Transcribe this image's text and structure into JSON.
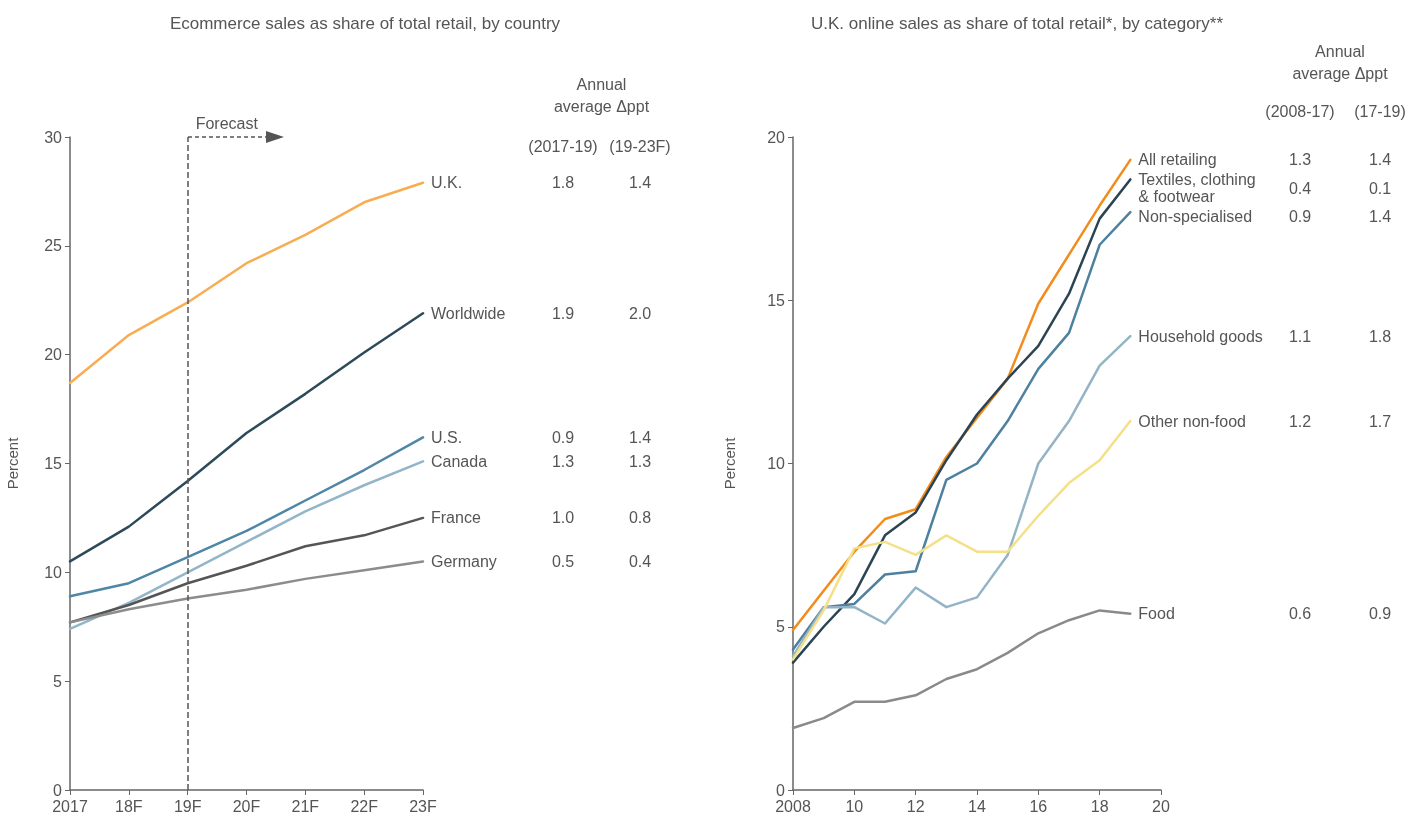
{
  "chart_data": [
    {
      "type": "line",
      "title": "Ecommerce sales as share of total retail, by country",
      "ylabel": "Percent",
      "categories": [
        "2017",
        "18F",
        "19F",
        "20F",
        "21F",
        "22F",
        "23F"
      ],
      "ylim": [
        0,
        30
      ],
      "yticks": [
        0,
        5,
        10,
        15,
        20,
        25,
        30
      ],
      "marker": "none",
      "grid": false,
      "series": [
        {
          "name": "U.K.",
          "color": "#f9ad52",
          "values": [
            18.7,
            20.9,
            22.4,
            24.2,
            25.5,
            27.0,
            27.9
          ]
        },
        {
          "name": "Worldwide",
          "color": "#2d4a5a",
          "values": [
            10.5,
            12.1,
            14.2,
            16.4,
            18.2,
            20.1,
            21.9
          ]
        },
        {
          "name": "U.S.",
          "color": "#4f86a6",
          "values": [
            8.9,
            9.5,
            10.7,
            11.9,
            13.3,
            14.7,
            16.2
          ]
        },
        {
          "name": "Canada",
          "color": "#93b5c9",
          "values": [
            7.4,
            8.6,
            10.0,
            11.4,
            12.8,
            14.0,
            15.1
          ]
        },
        {
          "name": "France",
          "color": "#555555",
          "values": [
            7.7,
            8.5,
            9.5,
            10.3,
            11.2,
            11.7,
            12.5
          ]
        },
        {
          "name": "Germany",
          "color": "#8c8c8c",
          "values": [
            7.7,
            8.3,
            8.8,
            9.2,
            9.7,
            10.1,
            10.5
          ]
        }
      ],
      "ref_lines": [
        {
          "axis": "x",
          "value": "19F",
          "label": "Forecast",
          "line_style": "dashed",
          "color": "#555555"
        }
      ],
      "annotations": [
        "Annual average Δppt",
        "(2017-19)",
        "(19-23F)",
        "1.8",
        "1.4",
        "1.9",
        "2.0",
        "0.9",
        "1.4",
        "1.3",
        "1.3",
        "1.0",
        "0.8",
        "0.5",
        "0.4"
      ]
    },
    {
      "type": "line",
      "title": "U.K. online sales as share of total retail*, by category**",
      "ylabel": "Percent",
      "x": [
        2008,
        2009,
        2010,
        2011,
        2012,
        2013,
        2014,
        2015,
        2016,
        2017,
        2018,
        2019
      ],
      "xlim": [
        2008,
        2020
      ],
      "xticks": [
        2008,
        {
          "value": 2010,
          "label": "10"
        },
        {
          "value": 2012,
          "label": "12"
        },
        {
          "value": 2014,
          "label": "14"
        },
        {
          "value": 2016,
          "label": "16"
        },
        {
          "value": 2018,
          "label": "18"
        },
        {
          "value": 2020,
          "label": "20"
        }
      ],
      "ylim": [
        0,
        20
      ],
      "yticks": [
        0,
        5,
        10,
        15,
        20
      ],
      "marker": "none",
      "grid": false,
      "series": [
        {
          "name": "All retailing",
          "color": "#f28c1c",
          "values": [
            4.9,
            6.1,
            7.3,
            8.3,
            8.6,
            10.2,
            11.4,
            12.6,
            14.9,
            16.4,
            17.9,
            19.3
          ]
        },
        {
          "name": "Textiles, clothing & footwear",
          "color": "#2b4454",
          "values": [
            3.9,
            5.0,
            6.0,
            7.8,
            8.5,
            10.1,
            11.5,
            12.6,
            13.6,
            15.2,
            17.5,
            18.7
          ]
        },
        {
          "name": "Non-specialised",
          "color": "#4d819e",
          "values": [
            4.3,
            5.6,
            5.7,
            6.6,
            6.7,
            9.5,
            10.0,
            11.3,
            12.9,
            14.0,
            16.7,
            17.7
          ]
        },
        {
          "name": "Household goods",
          "color": "#94b4c6",
          "values": [
            4.1,
            5.6,
            5.6,
            5.1,
            6.2,
            5.6,
            5.9,
            7.2,
            10.0,
            11.3,
            13.0,
            13.9
          ]
        },
        {
          "name": "Other non-food",
          "color": "#f5e08a",
          "values": [
            4.0,
            5.5,
            7.4,
            7.6,
            7.2,
            7.8,
            7.3,
            7.3,
            8.4,
            9.4,
            10.1,
            11.3
          ]
        },
        {
          "name": "Food",
          "color": "#8a8a8a",
          "values": [
            1.9,
            2.2,
            2.7,
            2.7,
            2.9,
            3.4,
            3.7,
            4.2,
            4.8,
            5.2,
            5.5,
            5.4
          ]
        }
      ],
      "annotations": [
        "Annual average Δppt",
        "(2008-17)",
        "(17-19)",
        "1.3",
        "1.4",
        "0.4",
        "0.1",
        "0.9",
        "1.4",
        "1.1",
        "1.8",
        "1.2",
        "1.7",
        "0.6",
        "0.9"
      ]
    }
  ]
}
